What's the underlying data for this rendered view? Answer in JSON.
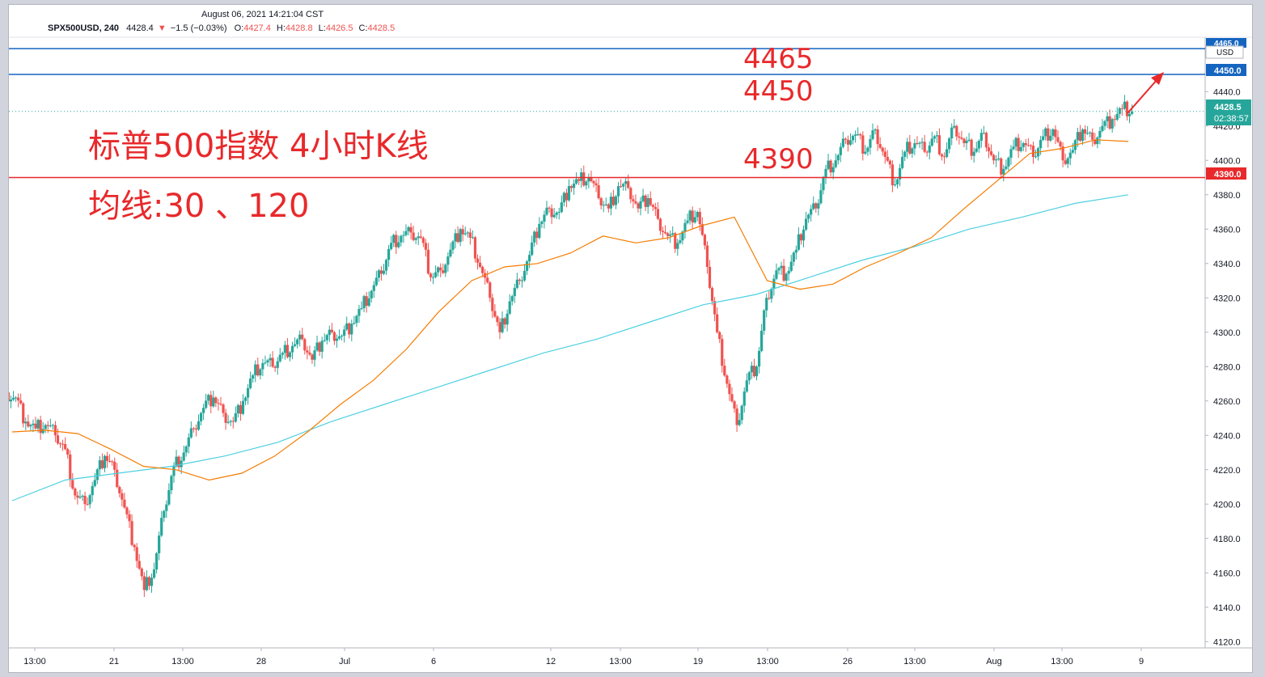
{
  "header": {
    "datetime": "August 06, 2021 14:21:04 CST",
    "symbol": "SPX500USD, 240",
    "last": "4428.4",
    "change": "−1.5 (−0.03%)",
    "open_label": "O:",
    "open": "4427.4",
    "high_label": "H:",
    "high": "4428.8",
    "low_label": "L:",
    "low": "4426.5",
    "close_label": "C:",
    "close": "4428.5"
  },
  "annotations": {
    "title": "标普500指数 4小时K线",
    "subtitle": "均线:30 、120",
    "level_4465": "4465",
    "level_4450": "4450",
    "level_4390": "4390"
  },
  "price_tags": {
    "tag_4465": "4465.0",
    "usd": "USD",
    "tag_4450": "4450.0",
    "last_price": "4428.5",
    "countdown": "02:38:57",
    "tag_4390": "4390.0"
  },
  "colors": {
    "up": "#26a69a",
    "down": "#ef5350",
    "ma30": "#f57c00",
    "ma120": "#4dd0e1",
    "blue_line": "#1565c0",
    "red_line": "#e8292b"
  },
  "chart_data": {
    "type": "candlestick",
    "ylim": [
      4110,
      4470
    ],
    "yticks": [
      4120,
      4140,
      4160,
      4180,
      4200,
      4220,
      4240,
      4260,
      4280,
      4300,
      4320,
      4340,
      4360,
      4380,
      4400,
      4420,
      4440
    ],
    "xticks": [
      "13:00",
      "21",
      "13:00",
      "28",
      "Jul",
      "6",
      "12",
      "13:00",
      "19",
      "13:00",
      "26",
      "13:00",
      "Aug",
      "13:00",
      "9"
    ],
    "hlines": [
      {
        "value": 4465,
        "label": "4465.0",
        "color": "#1565c0"
      },
      {
        "value": 4450,
        "label": "4450.0",
        "color": "#1565c0"
      },
      {
        "value": 4390,
        "label": "4390.0",
        "color": "#e8292b"
      }
    ],
    "last_price": 4428.5,
    "close_path": [
      4262,
      4248,
      4244,
      4246,
      4240,
      4232,
      4205,
      4200,
      4214,
      4228,
      4220,
      4198,
      4175,
      4150,
      4162,
      4196,
      4222,
      4230,
      4244,
      4256,
      4262,
      4253,
      4248,
      4260,
      4275,
      4282,
      4280,
      4288,
      4292,
      4296,
      4284,
      4295,
      4300,
      4298,
      4305,
      4314,
      4324,
      4334,
      4352,
      4356,
      4358,
      4355,
      4332,
      4336,
      4348,
      4360,
      4355,
      4338,
      4320,
      4300,
      4318,
      4330,
      4345,
      4363,
      4372,
      4370,
      4385,
      4388,
      4390,
      4378,
      4372,
      4385,
      4384,
      4372,
      4378,
      4366,
      4356,
      4352,
      4365,
      4370,
      4338,
      4300,
      4270,
      4246,
      4272,
      4280,
      4320,
      4336,
      4334,
      4348,
      4366,
      4372,
      4395,
      4400,
      4412,
      4415,
      4405,
      4418,
      4402,
      4386,
      4405,
      4410,
      4405,
      4414,
      4402,
      4420,
      4410,
      4405,
      4416,
      4400,
      4395,
      4408,
      4410,
      4402,
      4414,
      4418,
      4400,
      4406,
      4418,
      4412,
      4420,
      4424,
      4430,
      4428.5
    ],
    "ma30_path": [
      4242,
      4243,
      4241,
      4232,
      4222,
      4220,
      4214,
      4218,
      4228,
      4242,
      4258,
      4272,
      4290,
      4312,
      4330,
      4338,
      4340,
      4346,
      4356,
      4352,
      4355,
      4362,
      4367,
      4330,
      4325,
      4328,
      4338,
      4346,
      4355,
      4372,
      4388,
      4404,
      4407,
      4412,
      4411
    ],
    "ma120_path": [
      4202,
      4214,
      4218,
      4222,
      4228,
      4236,
      4248,
      4258,
      4268,
      4278,
      4288,
      4296,
      4306,
      4316,
      4322,
      4332,
      4342,
      4350,
      4360,
      4367,
      4375,
      4380
    ]
  }
}
